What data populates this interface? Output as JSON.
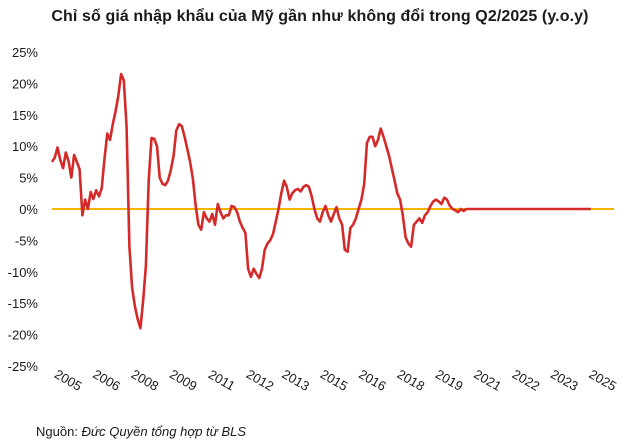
{
  "title": "Chỉ số giá nhập khẩu của Mỹ gần như không đổi trong Q2/2025 (y.o.y)",
  "source": {
    "label": "Nguồn: ",
    "text": "Đức Quyền tổng hợp từ BLS"
  },
  "colors": {
    "line": "#d42a2a",
    "zero_line": "#f5b400",
    "axis_text": "#1a1a1a"
  },
  "chart_data": {
    "type": "line",
    "title": "Chỉ số giá nhập khẩu của Mỹ gần như không đổi trong Q2/2025 (y.o.y)",
    "xlabel": "",
    "ylabel": "",
    "xlim": [
      2005,
      2025.5
    ],
    "ylim": [
      -25,
      25
    ],
    "y_ticks": [
      25,
      20,
      15,
      10,
      5,
      0,
      -5,
      -10,
      -15,
      -20,
      -25
    ],
    "y_tick_labels": [
      "25%",
      "20%",
      "15%",
      "10%",
      "5%",
      "0%",
      "-5%",
      "-10%",
      "-15%",
      "-20%",
      "-25%"
    ],
    "x_ticks": [
      2005,
      2006,
      2008,
      2009,
      2011,
      2012,
      2013,
      2015,
      2016,
      2018,
      2019,
      2021,
      2022,
      2023,
      2025
    ],
    "x_tick_positions": [
      2005.0,
      2006.4,
      2007.8,
      2009.2,
      2010.6,
      2012.0,
      2013.3,
      2014.7,
      2016.1,
      2017.5,
      2018.9,
      2020.3,
      2021.7,
      2023.1,
      2024.5
    ],
    "reference_line": 0,
    "grid": false,
    "series": [
      {
        "name": "",
        "x": [
          2005.0,
          2005.1,
          2005.2,
          2005.3,
          2005.4,
          2005.5,
          2005.6,
          2005.7,
          2005.8,
          2005.9,
          2006.0,
          2006.1,
          2006.2,
          2006.3,
          2006.4,
          2006.5,
          2006.6,
          2006.7,
          2006.8,
          2006.9,
          2007.0,
          2007.1,
          2007.2,
          2007.3,
          2007.4,
          2007.5,
          2007.6,
          2007.7,
          2007.8,
          2007.9,
          2008.0,
          2008.1,
          2008.2,
          2008.3,
          2008.4,
          2008.5,
          2008.6,
          2008.7,
          2008.8,
          2008.9,
          2009.0,
          2009.1,
          2009.2,
          2009.3,
          2009.4,
          2009.5,
          2009.6,
          2009.7,
          2009.8,
          2009.9,
          2010.0,
          2010.1,
          2010.2,
          2010.3,
          2010.4,
          2010.5,
          2010.6,
          2010.7,
          2010.8,
          2010.9,
          2011.0,
          2011.1,
          2011.2,
          2011.3,
          2011.4,
          2011.5,
          2011.6,
          2011.7,
          2011.8,
          2011.9,
          2012.0,
          2012.1,
          2012.2,
          2012.3,
          2012.4,
          2012.5,
          2012.6,
          2012.7,
          2012.8,
          2012.9,
          2013.0,
          2013.1,
          2013.2,
          2013.3,
          2013.4,
          2013.5,
          2013.6,
          2013.7,
          2013.8,
          2013.9,
          2014.0,
          2014.1,
          2014.2,
          2014.3,
          2014.4,
          2014.5,
          2014.6,
          2014.7,
          2014.8,
          2014.9,
          2015.0,
          2015.1,
          2015.2,
          2015.3,
          2015.4,
          2015.5,
          2015.6,
          2015.7,
          2015.8,
          2015.9,
          2016.0,
          2016.1,
          2016.2,
          2016.3,
          2016.4,
          2016.5,
          2016.6,
          2016.7,
          2016.8,
          2016.9,
          2017.0,
          2017.1,
          2017.2,
          2017.3,
          2017.4,
          2017.5,
          2017.6,
          2017.7,
          2017.8,
          2017.9,
          2018.0,
          2018.1,
          2018.2,
          2018.3,
          2018.4,
          2018.5,
          2018.6,
          2018.7,
          2018.8,
          2018.9,
          2019.0,
          2019.1,
          2019.2,
          2019.3,
          2019.4,
          2019.5,
          2019.6,
          2019.7,
          2019.8,
          2019.9,
          2020.0,
          2020.1,
          2020.2,
          2020.3,
          2020.4,
          2020.5,
          2020.6,
          2020.7,
          2020.8,
          2020.9,
          2021.0,
          2021.1,
          2021.2,
          2021.3,
          2021.4,
          2021.5,
          2021.6,
          2021.7,
          2021.8,
          2021.9,
          2022.0,
          2022.1,
          2022.2,
          2022.3,
          2022.4,
          2022.5,
          2022.6,
          2022.7,
          2022.8,
          2022.9,
          2023.0,
          2023.1,
          2023.2,
          2023.3,
          2023.4,
          2023.5,
          2023.6,
          2023.7,
          2023.8,
          2023.9,
          2024.0,
          2024.1,
          2024.2,
          2024.3,
          2024.4,
          2024.5
        ],
        "values": [
          7.5,
          8.2,
          9.8,
          7.8,
          6.5,
          9.0,
          7.6,
          5.0,
          8.6,
          7.5,
          6.3,
          -1.0,
          1.5,
          0.0,
          2.7,
          1.6,
          3.0,
          2.0,
          3.3,
          8.0,
          12.0,
          11.0,
          13.5,
          15.5,
          18.0,
          21.5,
          20.5,
          13.0,
          -6.0,
          -12.5,
          -15.5,
          -17.5,
          -19.0,
          -14.5,
          -9.0,
          4.5,
          11.3,
          11.2,
          10.0,
          5.0,
          4.0,
          3.8,
          4.5,
          6.2,
          8.5,
          12.5,
          13.5,
          13.2,
          11.5,
          9.5,
          7.5,
          4.8,
          0.5,
          -2.5,
          -3.3,
          -0.5,
          -1.5,
          -2.0,
          -0.8,
          -2.5,
          0.8,
          -0.5,
          -1.5,
          -1.0,
          -1.0,
          0.5,
          0.3,
          -0.5,
          -2.0,
          -3.0,
          -3.8,
          -9.5,
          -10.8,
          -9.5,
          -10.3,
          -11.0,
          -9.5,
          -6.5,
          -5.5,
          -5.0,
          -4.0,
          -2.0,
          0.0,
          2.5,
          4.5,
          3.5,
          1.5,
          2.5,
          3.0,
          3.2,
          2.8,
          3.5,
          3.8,
          3.5,
          2.0,
          0.0,
          -1.5,
          -2.0,
          -0.5,
          0.5,
          -1.0,
          -2.0,
          -0.8,
          0.3,
          -1.5,
          -2.5,
          -6.5,
          -6.8,
          -3.0,
          -2.5,
          -1.5,
          0.0,
          1.5,
          4.0,
          10.5,
          11.5,
          11.5,
          10.0,
          11.0,
          12.8,
          11.5,
          10.0,
          8.5,
          6.5,
          4.5,
          2.5,
          1.5,
          -1.0,
          -4.5,
          -5.5,
          -6.0,
          -2.5,
          -2.0,
          -1.5,
          -2.2,
          -1.0,
          -0.5,
          0.5,
          1.2,
          1.5,
          1.2,
          0.8,
          1.8,
          1.5,
          0.5,
          0.0,
          -0.2,
          -0.5,
          0.0,
          -0.3,
          0.0,
          0.0,
          0.0,
          0.0,
          0.0,
          0.0,
          0.0,
          0.0,
          0.0,
          0.0,
          0.0,
          0.0,
          0.0,
          0.0,
          0.0,
          0.0,
          0.0,
          0.0,
          0.0,
          0.0,
          0.0,
          0.0,
          0.0,
          0.0,
          0.0,
          0.0,
          0.0,
          0.0,
          0.0,
          0.0,
          0.0,
          0.0,
          0.0,
          0.0,
          0.0,
          0.0,
          0.0,
          0.0,
          0.0,
          0.0,
          0.0,
          0.0,
          0.0,
          0.0,
          0.0,
          0.0
        ]
      }
    ]
  }
}
